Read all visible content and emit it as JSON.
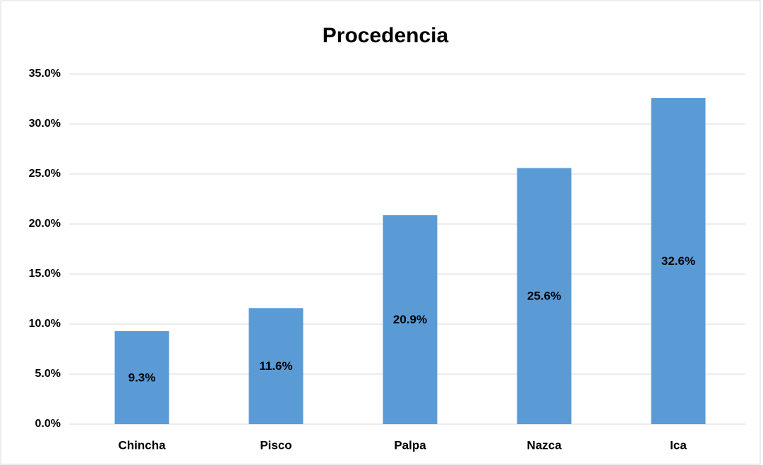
{
  "chart_data": {
    "type": "bar",
    "title": "Procedencia",
    "categories": [
      "Chincha",
      "Pisco",
      "Palpa",
      "Nazca",
      "Ica"
    ],
    "values": [
      9.3,
      11.6,
      20.9,
      25.6,
      32.6
    ],
    "value_labels": [
      "9.3%",
      "11.6%",
      "20.9%",
      "25.6%",
      "32.6%"
    ],
    "color": "#5b9bd5",
    "ylim": [
      0,
      35
    ],
    "yticks": [
      {
        "value": 0,
        "label": "0.0%"
      },
      {
        "value": 5,
        "label": "5.0%"
      },
      {
        "value": 10,
        "label": "10.0%"
      },
      {
        "value": 15,
        "label": "15.0%"
      },
      {
        "value": 20,
        "label": "20.0%"
      },
      {
        "value": 25,
        "label": "25.0%"
      },
      {
        "value": 30,
        "label": "30.0%"
      },
      {
        "value": 35,
        "label": "35.0%"
      }
    ],
    "grid": true
  }
}
